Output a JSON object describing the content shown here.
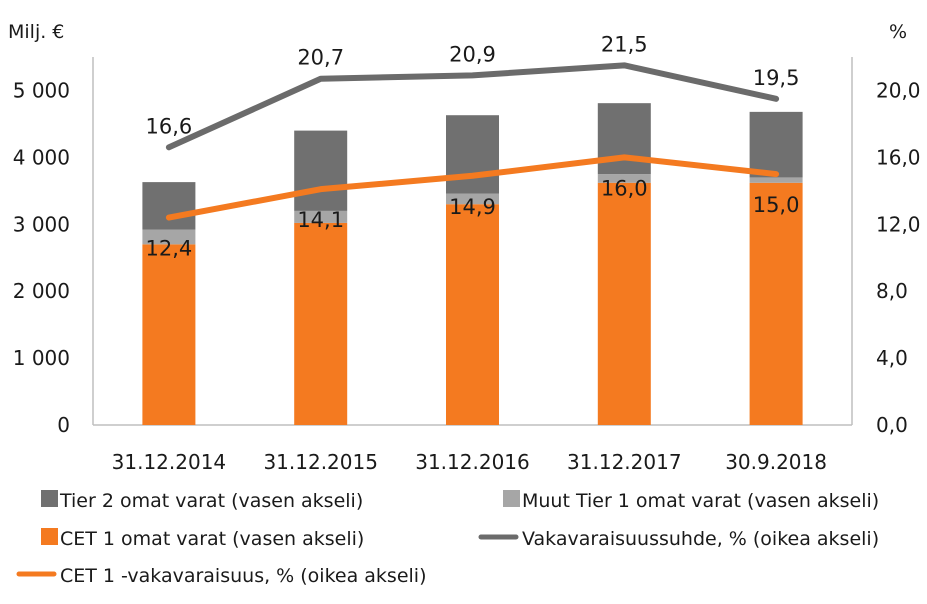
{
  "chart_data": {
    "type": "bar",
    "categories": [
      "31.12.2014",
      "31.12.2015",
      "31.12.2016",
      "31.12.2017",
      "30.9.2018"
    ],
    "left_axis": {
      "unit_label": "Milj. €",
      "ylim": [
        0,
        5500
      ],
      "ticks": [
        0,
        1000,
        2000,
        3000,
        4000,
        5000
      ],
      "tick_labels": [
        "0",
        "1 000",
        "2 000",
        "3 000",
        "4 000",
        "5 000"
      ]
    },
    "right_axis": {
      "unit_label": "%",
      "ylim": [
        0,
        22.0
      ],
      "ticks": [
        0,
        4,
        8,
        12,
        16,
        20
      ],
      "tick_labels": [
        "0,0",
        "4,0",
        "8,0",
        "12,0",
        "16,0",
        "20,0"
      ]
    },
    "bar_series": [
      {
        "name": "CET 1 omat varat (vasen akseli)",
        "color": "#F47A20",
        "values": [
          2700,
          3020,
          3300,
          3620,
          3620
        ]
      },
      {
        "name": "Muut Tier 1 omat varat (vasen akseli)",
        "color": "#A6A6A6",
        "values": [
          220,
          180,
          160,
          130,
          80
        ]
      },
      {
        "name": "Tier 2 omat varat (vasen akseli)",
        "color": "#707070",
        "values": [
          710,
          1200,
          1170,
          1060,
          980
        ]
      }
    ],
    "line_series": [
      {
        "name": "Vakavaraisuussuhde, % (oikea akseli)",
        "color": "#6B6B6B",
        "values": [
          16.6,
          20.7,
          20.9,
          21.5,
          19.5
        ],
        "labels": [
          "16,6",
          "20,7",
          "20,9",
          "21,5",
          "19,5"
        ]
      },
      {
        "name": "CET 1 -vakavaraisuus, % (oikea akseli)",
        "color": "#F47A20",
        "values": [
          12.4,
          14.1,
          14.9,
          16.0,
          15.0
        ],
        "labels": [
          "12,4",
          "14,1",
          "14,9",
          "16,0",
          "15,0"
        ]
      }
    ],
    "legend": {
      "placement": "bottom",
      "items": [
        {
          "label": "Tier 2 omat varat (vasen akseli)",
          "kind": "box",
          "color": "#707070"
        },
        {
          "label": "Muut Tier 1 omat varat (vasen akseli)",
          "kind": "box",
          "color": "#A6A6A6"
        },
        {
          "label": "CET 1 omat varat (vasen akseli)",
          "kind": "box",
          "color": "#F47A20"
        },
        {
          "label": "Vakavaraisuussuhde, % (oikea akseli)",
          "kind": "line",
          "color": "#6B6B6B"
        },
        {
          "label": "CET 1 -vakavaraisuus, % (oikea akseli)",
          "kind": "line",
          "color": "#F47A20"
        }
      ]
    },
    "grid": false
  }
}
